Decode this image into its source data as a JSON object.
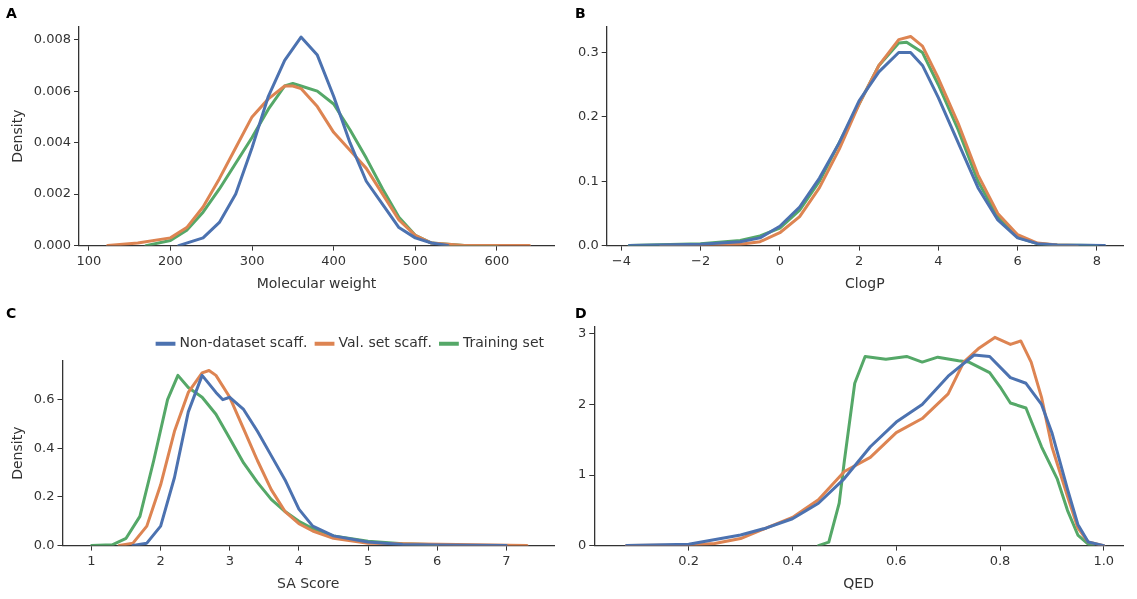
{
  "chart_data": [
    {
      "type": "line",
      "title": "A",
      "xlabel": "Molecular weight",
      "ylabel": "Density",
      "xlim": [
        88,
        670
      ],
      "ylim": [
        0,
        0.0085
      ],
      "xticks": [
        100,
        200,
        300,
        400,
        500,
        600
      ],
      "yticks": [
        {
          "value": 0,
          "label": "0.000"
        },
        {
          "value": 0.002,
          "label": "0.002"
        },
        {
          "value": 0.004,
          "label": "0.004"
        },
        {
          "value": 0.006,
          "label": "0.006"
        },
        {
          "value": 0.008,
          "label": "0.008"
        }
      ],
      "grid": false,
      "legend": false,
      "marker": "none",
      "line_style": "solid",
      "series": [
        {
          "color": "#4c72b0",
          "x": [
            210,
            240,
            260,
            280,
            300,
            320,
            340,
            360,
            380,
            400,
            420,
            440,
            460,
            480,
            500,
            520,
            540
          ],
          "values": [
            0,
            0.0003,
            0.0009,
            0.002,
            0.0038,
            0.0058,
            0.0072,
            0.0081,
            0.0074,
            0.0058,
            0.004,
            0.0025,
            0.0016,
            0.0007,
            0.0003,
            0.0001,
            0
          ]
        },
        {
          "color": "#dd8452",
          "x": [
            123,
            160,
            200,
            220,
            240,
            260,
            280,
            300,
            320,
            340,
            350,
            360,
            380,
            400,
            420,
            440,
            460,
            480,
            500,
            520,
            560,
            640
          ],
          "values": [
            0,
            0.0001,
            0.0003,
            0.0007,
            0.0015,
            0.0026,
            0.0038,
            0.005,
            0.0057,
            0.0062,
            0.0062,
            0.0061,
            0.0054,
            0.0044,
            0.0037,
            0.003,
            0.002,
            0.001,
            0.0004,
            0.0001,
            0,
            0
          ]
        },
        {
          "color": "#55a868",
          "x": [
            170,
            200,
            220,
            240,
            260,
            280,
            300,
            320,
            340,
            350,
            360,
            380,
            400,
            420,
            440,
            460,
            480,
            500,
            520,
            560,
            600
          ],
          "values": [
            0,
            0.0002,
            0.0006,
            0.0013,
            0.0022,
            0.0032,
            0.0042,
            0.0053,
            0.0062,
            0.0063,
            0.0062,
            0.006,
            0.0055,
            0.0045,
            0.0034,
            0.0022,
            0.0011,
            0.0004,
            0.0001,
            0,
            0
          ]
        }
      ]
    },
    {
      "type": "line",
      "title": "B",
      "xlabel": "ClogP",
      "xlim": [
        -4.37,
        8.66
      ],
      "ylim": [
        0,
        0.34
      ],
      "xticks": [
        {
          "value": -4,
          "label": "−4"
        },
        {
          "value": -2,
          "label": "−2"
        },
        0,
        2,
        4,
        6,
        8
      ],
      "yticks": [
        {
          "value": 0,
          "label": "0.0"
        },
        0.1,
        0.2,
        0.3
      ],
      "grid": false,
      "legend": false,
      "marker": "none",
      "line_style": "solid",
      "series": [
        {
          "color": "#4c72b0",
          "x": [
            -3.8,
            -2,
            -1,
            -0.5,
            0,
            0.5,
            1,
            1.5,
            2,
            2.5,
            3,
            3.3,
            3.6,
            4,
            4.5,
            5,
            5.5,
            6,
            6.5,
            7,
            8.2
          ],
          "values": [
            0,
            0.002,
            0.006,
            0.012,
            0.03,
            0.06,
            0.105,
            0.16,
            0.225,
            0.27,
            0.3,
            0.3,
            0.28,
            0.23,
            0.16,
            0.09,
            0.04,
            0.012,
            0.003,
            0.001,
            0
          ]
        },
        {
          "color": "#dd8452",
          "x": [
            -3,
            -1,
            -0.5,
            0,
            0.5,
            1,
            1.5,
            2,
            2.5,
            3,
            3.3,
            3.6,
            4,
            4.5,
            5,
            5.5,
            6,
            6.5,
            7,
            7.5
          ],
          "values": [
            0,
            0.002,
            0.006,
            0.02,
            0.045,
            0.09,
            0.15,
            0.22,
            0.28,
            0.32,
            0.325,
            0.31,
            0.26,
            0.19,
            0.11,
            0.05,
            0.017,
            0.004,
            0.001,
            0
          ]
        },
        {
          "color": "#55a868",
          "x": [
            -3.8,
            -2,
            -1,
            -0.5,
            0,
            0.5,
            1,
            1.5,
            2,
            2.5,
            3,
            3.2,
            3.6,
            4,
            4.5,
            5,
            5.5,
            6,
            6.5,
            7,
            8
          ],
          "values": [
            0,
            0.003,
            0.008,
            0.015,
            0.027,
            0.055,
            0.1,
            0.16,
            0.22,
            0.28,
            0.315,
            0.316,
            0.3,
            0.25,
            0.18,
            0.1,
            0.045,
            0.013,
            0.003,
            0.001,
            0
          ]
        }
      ]
    },
    {
      "type": "line",
      "title": "C",
      "xlabel": "SA Score",
      "ylabel": "Density",
      "xlim": [
        0.58,
        7.69
      ],
      "ylim": [
        0,
        0.76
      ],
      "xticks": [
        1,
        2,
        3,
        4,
        5,
        6,
        7
      ],
      "yticks": [
        {
          "value": 0,
          "label": "0.0"
        },
        0.2,
        0.4,
        0.6
      ],
      "grid": false,
      "legend": "top right",
      "marker": "none",
      "line_style": "solid",
      "series": [
        {
          "name": "Non-dataset scaff.",
          "color": "#4c72b0",
          "x": [
            1.6,
            1.8,
            2,
            2.2,
            2.4,
            2.6,
            2.8,
            2.9,
            3,
            3.2,
            3.4,
            3.6,
            3.8,
            4,
            4.2,
            4.5,
            5,
            5.5,
            6,
            7
          ],
          "values": [
            0,
            0.01,
            0.08,
            0.28,
            0.55,
            0.7,
            0.63,
            0.6,
            0.61,
            0.56,
            0.47,
            0.37,
            0.27,
            0.15,
            0.08,
            0.04,
            0.015,
            0.005,
            0.002,
            0
          ]
        },
        {
          "name": "Val. set scaff.",
          "color": "#dd8452",
          "x": [
            1.4,
            1.6,
            1.8,
            2,
            2.2,
            2.4,
            2.6,
            2.7,
            2.8,
            3,
            3.2,
            3.4,
            3.6,
            3.8,
            4,
            4.2,
            4.5,
            5,
            7.3
          ],
          "values": [
            0,
            0.01,
            0.08,
            0.25,
            0.47,
            0.63,
            0.71,
            0.72,
            0.7,
            0.61,
            0.48,
            0.35,
            0.23,
            0.14,
            0.09,
            0.06,
            0.03,
            0.01,
            0
          ]
        },
        {
          "name": "Training set",
          "color": "#55a868",
          "x": [
            1,
            1.3,
            1.5,
            1.7,
            1.9,
            2.1,
            2.25,
            2.4,
            2.6,
            2.8,
            3,
            3.2,
            3.4,
            3.6,
            3.8,
            4,
            4.2,
            4.5,
            5,
            5.5,
            6
          ],
          "values": [
            0,
            0.003,
            0.03,
            0.12,
            0.35,
            0.6,
            0.7,
            0.65,
            0.61,
            0.54,
            0.44,
            0.34,
            0.26,
            0.19,
            0.14,
            0.1,
            0.07,
            0.04,
            0.018,
            0.008,
            0.004
          ]
        }
      ]
    },
    {
      "type": "line",
      "title": "D",
      "xlabel": "QED",
      "xlim": [
        0.018,
        1.037
      ],
      "ylim": [
        0,
        3.1
      ],
      "xticks": [
        0.2,
        0.4,
        0.6,
        0.8,
        {
          "value": 1,
          "label": "1.0"
        }
      ],
      "yticks": [
        0,
        1,
        2,
        3
      ],
      "grid": false,
      "legend": false,
      "marker": "none",
      "line_style": "solid",
      "series": [
        {
          "color": "#4c72b0",
          "x": [
            0.08,
            0.2,
            0.3,
            0.35,
            0.4,
            0.45,
            0.5,
            0.55,
            0.6,
            0.65,
            0.7,
            0.75,
            0.78,
            0.82,
            0.85,
            0.88,
            0.9,
            0.93,
            0.95,
            0.97,
            1
          ],
          "values": [
            0,
            0.02,
            0.15,
            0.25,
            0.38,
            0.6,
            0.95,
            1.4,
            1.75,
            2,
            2.4,
            2.7,
            2.68,
            2.38,
            2.3,
            2,
            1.6,
            0.8,
            0.3,
            0.05,
            0
          ]
        },
        {
          "color": "#dd8452",
          "x": [
            0.08,
            0.2,
            0.25,
            0.3,
            0.35,
            0.4,
            0.45,
            0.5,
            0.55,
            0.6,
            0.65,
            0.7,
            0.73,
            0.76,
            0.79,
            0.82,
            0.84,
            0.86,
            0.88,
            0.9,
            0.93,
            0.95,
            0.97,
            1
          ],
          "values": [
            0,
            0.01,
            0.03,
            0.1,
            0.25,
            0.4,
            0.65,
            1.05,
            1.25,
            1.6,
            1.8,
            2.15,
            2.6,
            2.8,
            2.95,
            2.85,
            2.9,
            2.6,
            2.1,
            1.4,
            0.7,
            0.25,
            0.05,
            0
          ]
        },
        {
          "color": "#55a868",
          "x": [
            0.45,
            0.47,
            0.49,
            0.5,
            0.52,
            0.54,
            0.58,
            0.62,
            0.65,
            0.68,
            0.72,
            0.74,
            0.78,
            0.8,
            0.82,
            0.85,
            0.88,
            0.91,
            0.93,
            0.95,
            0.97,
            0.98
          ],
          "values": [
            0,
            0.05,
            0.6,
            1.2,
            2.3,
            2.68,
            2.64,
            2.68,
            2.6,
            2.67,
            2.62,
            2.6,
            2.45,
            2.25,
            2.02,
            1.95,
            1.4,
            0.95,
            0.5,
            0.15,
            0.02,
            0
          ]
        }
      ]
    }
  ]
}
